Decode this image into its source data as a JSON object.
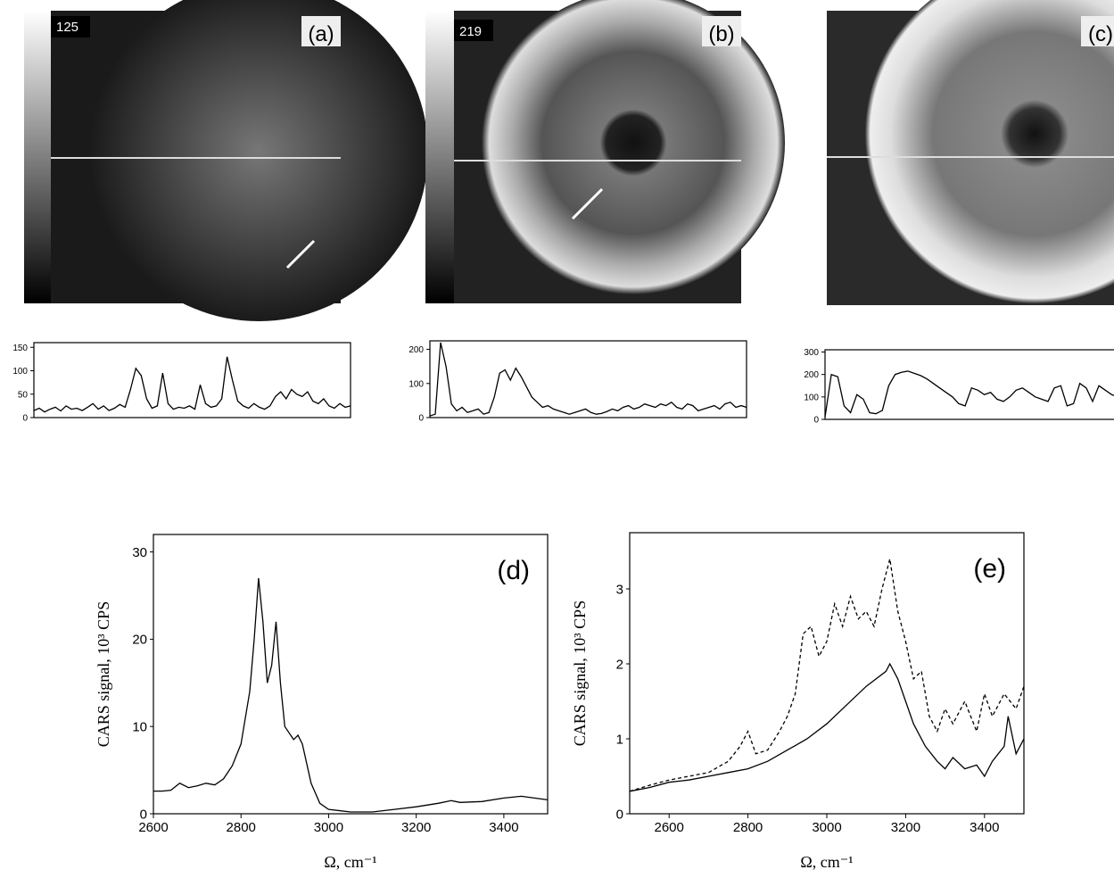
{
  "panels": [
    {
      "label": "(a)",
      "scale": "125"
    },
    {
      "label": "(b)",
      "scale": "219"
    },
    {
      "label": "(c)"
    }
  ],
  "chart_data": [
    {
      "type": "line",
      "ylim": [
        0,
        160
      ],
      "yticks": [
        0,
        50,
        100,
        150
      ],
      "color": "#000",
      "values": [
        15,
        20,
        12,
        18,
        22,
        14,
        25,
        18,
        20,
        15,
        22,
        30,
        18,
        25,
        15,
        20,
        28,
        22,
        60,
        105,
        90,
        40,
        20,
        25,
        95,
        30,
        18,
        22,
        20,
        25,
        18,
        70,
        30,
        22,
        25,
        40,
        130,
        80,
        35,
        25,
        20,
        30,
        22,
        18,
        25,
        45,
        55,
        40,
        60,
        50,
        45,
        55,
        35,
        30,
        40,
        25,
        20,
        30,
        22,
        25
      ]
    },
    {
      "type": "line",
      "ylim": [
        0,
        225
      ],
      "yticks": [
        0,
        100,
        200
      ],
      "color": "#000",
      "values": [
        5,
        10,
        220,
        150,
        40,
        20,
        30,
        15,
        20,
        25,
        10,
        15,
        60,
        130,
        140,
        110,
        145,
        120,
        90,
        60,
        45,
        30,
        35,
        25,
        20,
        15,
        10,
        15,
        20,
        25,
        15,
        10,
        12,
        18,
        25,
        20,
        30,
        35,
        25,
        30,
        40,
        35,
        30,
        40,
        35,
        45,
        30,
        25,
        40,
        35,
        20,
        25,
        30,
        35,
        25,
        40,
        45,
        30,
        35,
        30
      ]
    },
    {
      "type": "line",
      "ylim": [
        0,
        310
      ],
      "yticks": [
        0,
        100,
        200,
        300
      ],
      "color": "#000",
      "values": [
        10,
        200,
        190,
        60,
        30,
        110,
        90,
        30,
        25,
        40,
        150,
        200,
        210,
        215,
        205,
        195,
        180,
        160,
        140,
        120,
        100,
        70,
        60,
        140,
        130,
        110,
        120,
        90,
        80,
        100,
        130,
        140,
        120,
        100,
        90,
        80,
        140,
        150,
        60,
        70,
        160,
        140,
        80,
        150,
        130,
        110,
        100,
        80,
        90,
        70
      ]
    },
    {
      "type": "line",
      "annotation": "(d)",
      "xlabel": "Ω, cm⁻¹",
      "ylabel": "CARS signal, 10³ CPS",
      "xlim": [
        2600,
        3500
      ],
      "xticks": [
        2600,
        2800,
        3000,
        3200,
        3400
      ],
      "ylim": [
        0,
        32
      ],
      "yticks": [
        0,
        10,
        20,
        30
      ],
      "color": "#000",
      "x": [
        2600,
        2620,
        2640,
        2660,
        2680,
        2700,
        2720,
        2740,
        2760,
        2780,
        2800,
        2820,
        2830,
        2840,
        2850,
        2860,
        2870,
        2880,
        2890,
        2900,
        2920,
        2930,
        2940,
        2960,
        2980,
        3000,
        3050,
        3100,
        3150,
        3200,
        3250,
        3280,
        3300,
        3350,
        3400,
        3440,
        3500
      ],
      "values": [
        2.6,
        2.6,
        2.7,
        3.5,
        3.0,
        3.2,
        3.5,
        3.3,
        4,
        5.5,
        8,
        14,
        20,
        27,
        22,
        15,
        17,
        22,
        15,
        10,
        8.5,
        9,
        8,
        3.5,
        1.2,
        0.5,
        0.2,
        0.2,
        0.5,
        0.8,
        1.2,
        1.5,
        1.3,
        1.4,
        1.8,
        2.0,
        1.6
      ]
    },
    {
      "type": "line",
      "annotation": "(e)",
      "xlabel": "Ω, cm⁻¹",
      "ylabel": "CARS signal, 10³ CPS",
      "xlim": [
        2500,
        3500
      ],
      "xticks": [
        2600,
        2800,
        3000,
        3200,
        3400
      ],
      "ylim": [
        0,
        3.75
      ],
      "yticks": [
        0,
        1,
        2,
        3
      ],
      "series": [
        {
          "color": "#000",
          "dash": false,
          "x": [
            2500,
            2550,
            2600,
            2650,
            2700,
            2750,
            2800,
            2850,
            2900,
            2950,
            3000,
            3050,
            3100,
            3150,
            3160,
            3180,
            3200,
            3220,
            3250,
            3280,
            3300,
            3320,
            3350,
            3380,
            3400,
            3420,
            3450,
            3460,
            3480,
            3500
          ],
          "values": [
            0.3,
            0.35,
            0.42,
            0.45,
            0.5,
            0.55,
            0.6,
            0.7,
            0.85,
            1.0,
            1.2,
            1.45,
            1.7,
            1.9,
            2.0,
            1.8,
            1.5,
            1.2,
            0.9,
            0.7,
            0.6,
            0.75,
            0.6,
            0.65,
            0.5,
            0.7,
            0.9,
            1.3,
            0.8,
            1.0
          ]
        },
        {
          "color": "#000",
          "dash": true,
          "x": [
            2500,
            2550,
            2600,
            2650,
            2700,
            2750,
            2780,
            2800,
            2820,
            2850,
            2880,
            2900,
            2920,
            2940,
            2960,
            2980,
            3000,
            3020,
            3040,
            3060,
            3080,
            3100,
            3120,
            3140,
            3160,
            3180,
            3200,
            3220,
            3240,
            3260,
            3280,
            3300,
            3320,
            3350,
            3380,
            3400,
            3420,
            3450,
            3480,
            3500
          ],
          "values": [
            0.3,
            0.38,
            0.45,
            0.5,
            0.55,
            0.7,
            0.9,
            1.1,
            0.8,
            0.85,
            1.1,
            1.3,
            1.6,
            2.4,
            2.5,
            2.1,
            2.3,
            2.8,
            2.5,
            2.9,
            2.6,
            2.7,
            2.5,
            3.0,
            3.4,
            2.7,
            2.3,
            1.8,
            1.9,
            1.3,
            1.1,
            1.4,
            1.2,
            1.5,
            1.1,
            1.6,
            1.3,
            1.6,
            1.4,
            1.7
          ]
        }
      ]
    }
  ]
}
